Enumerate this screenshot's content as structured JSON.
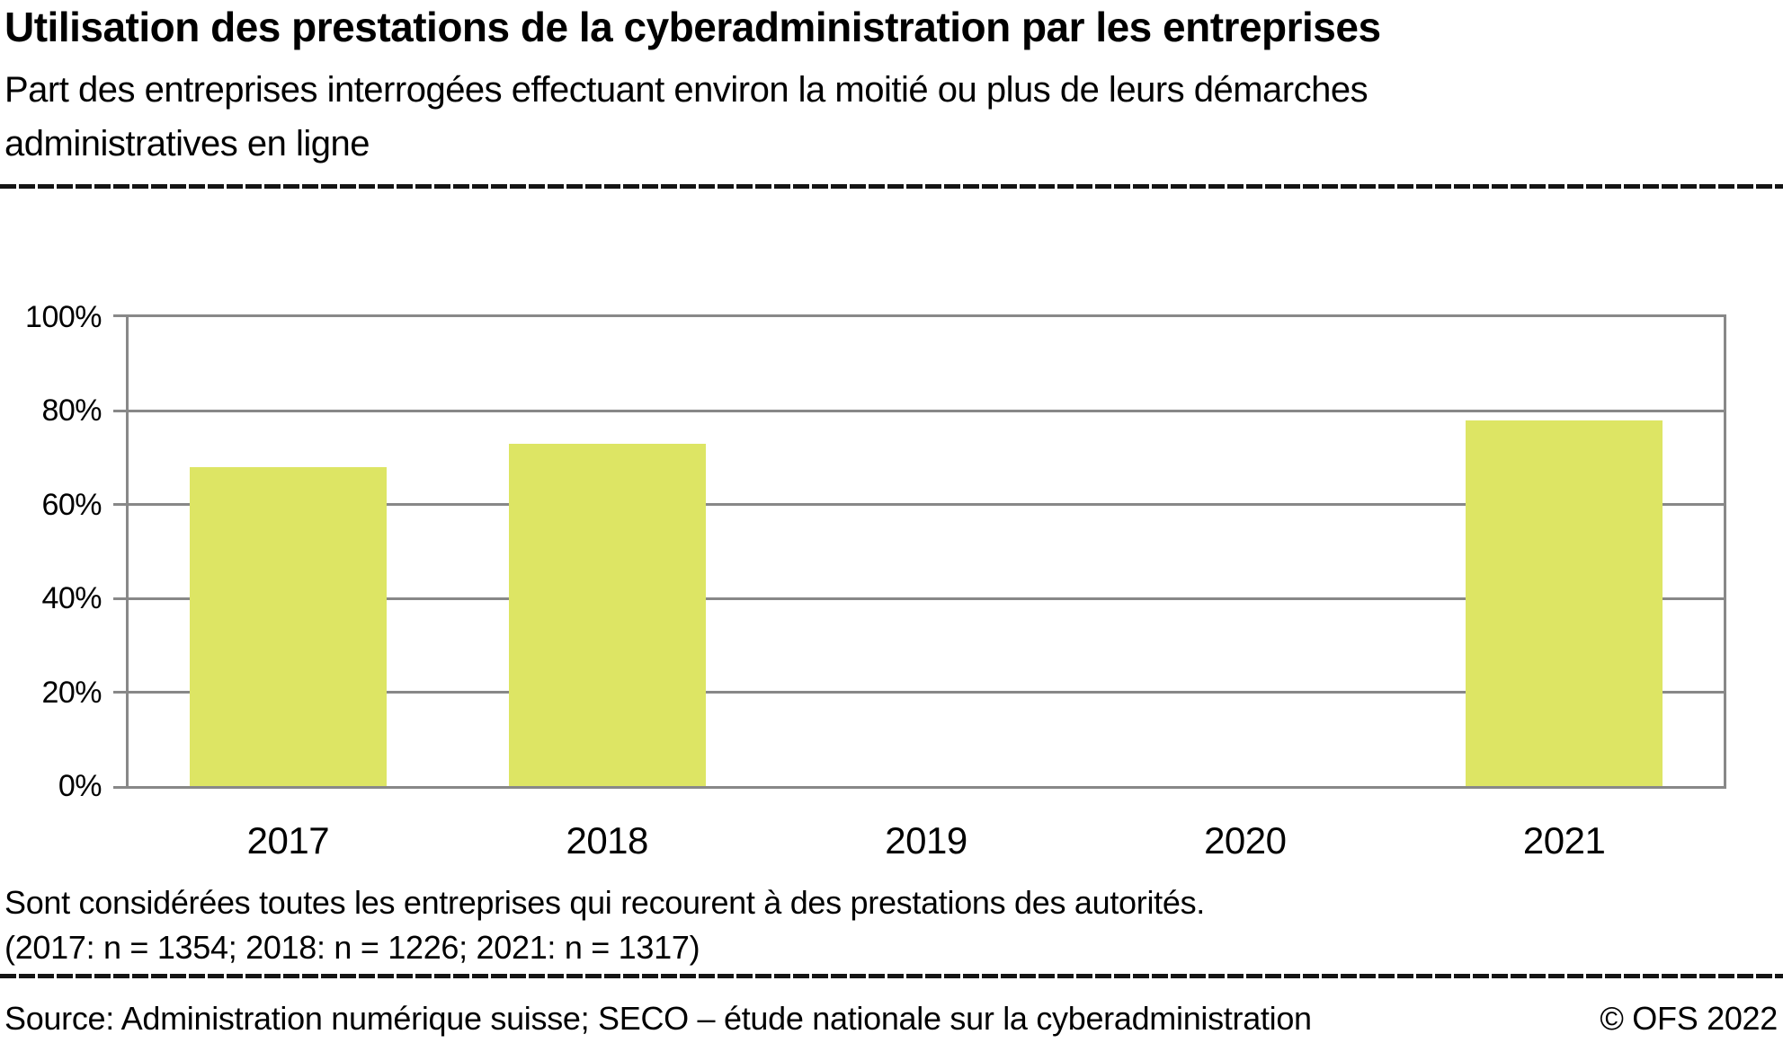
{
  "header": {
    "title": "Utilisation des prestations de la cyberadministration par les entreprises",
    "subtitle": "Part des entreprises interrogées effectuant environ la moitié ou plus de leurs démarches\nadministratives en ligne"
  },
  "chart_data": {
    "type": "bar",
    "title": "Utilisation des prestations de la cyberadministration par les entreprises",
    "categories": [
      "2017",
      "2018",
      "2019",
      "2020",
      "2021"
    ],
    "values": [
      68,
      73,
      null,
      null,
      78
    ],
    "unit": "%",
    "xlabel": "",
    "ylabel": "",
    "ylim": [
      0,
      100
    ],
    "yticks": [
      0,
      20,
      40,
      60,
      80,
      100
    ],
    "ytick_labels": [
      "0%",
      "20%",
      "40%",
      "60%",
      "80%",
      "100%"
    ],
    "grid": "horizontal",
    "legend": "none",
    "bar_color": "#dde564",
    "grid_color": "#888888"
  },
  "notes": {
    "text": "Sont considérées toutes les entreprises qui recourent à des prestations des autorités.\n(2017: n = 1354; 2018: n = 1226; 2021: n = 1317)"
  },
  "footer": {
    "source": "Source: Administration numérique suisse; SECO – étude nationale sur la cyberadministration",
    "copyright": "© OFS 2022"
  }
}
